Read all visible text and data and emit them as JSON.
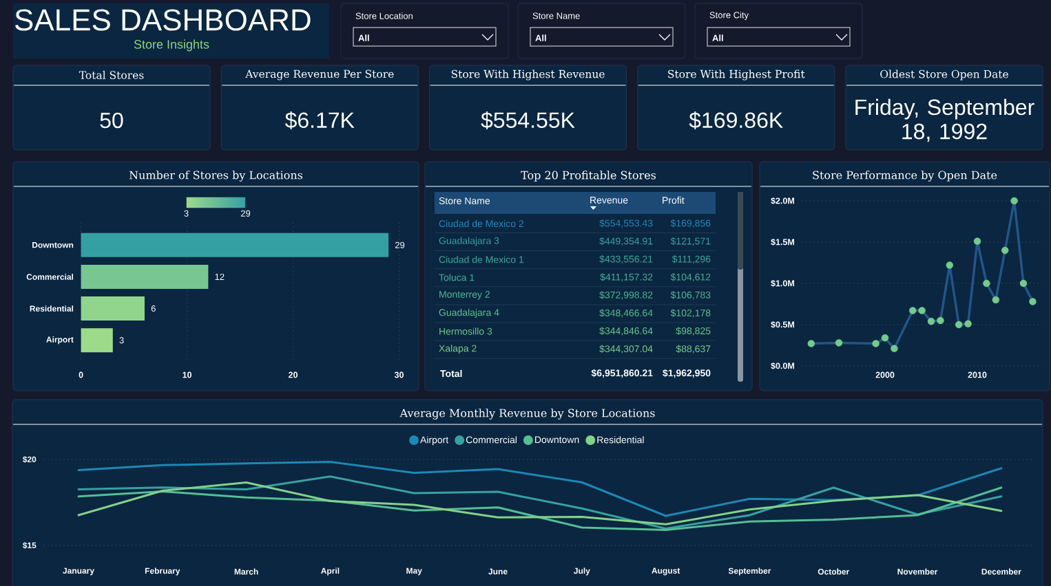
{
  "chart_data": [
    {
      "type": "other",
      "title": "SALES DASHBOARD",
      "subtitle": "Store Insights",
      "annotations": [
        "Store Location",
        "All",
        "Store Name",
        "All",
        "Store City",
        "All"
      ]
    },
    {
      "type": "other",
      "title": "Total Stores",
      "annotations": [
        "50"
      ]
    },
    {
      "type": "other",
      "title": "Average Revenue Per Store",
      "annotations": [
        "$6.17K"
      ]
    },
    {
      "type": "other",
      "title": "Store With Highest Revenue",
      "annotations": [
        "$554.55K"
      ]
    },
    {
      "type": "other",
      "title": "Store With Highest Profit",
      "annotations": [
        "$169.86K"
      ]
    },
    {
      "type": "other",
      "title": "Oldest Store Open Date",
      "annotations": [
        "Friday, September 18, 1992"
      ]
    },
    {
      "type": "bar",
      "orientation": "horizontal",
      "title": "Number of Stores by Locations",
      "categories": [
        "Downtown",
        "Commercial",
        "Residential",
        "Airport"
      ],
      "values": [
        29,
        12,
        6,
        3
      ],
      "colors": [
        "#35a0a4",
        "#78c692",
        "#91d48c",
        "#9dda8a"
      ],
      "xlim": [
        0,
        30
      ],
      "xticks": [
        0,
        10,
        20,
        30
      ],
      "grid": "x",
      "data_labels": true,
      "clim": [
        3,
        29
      ],
      "cticks": [
        3,
        29
      ]
    },
    {
      "type": "other",
      "title": "Top 20 Profitable Stores",
      "categories": [
        "Ciudad de Mexico 2",
        "Guadalajara 3",
        "Ciudad de Mexico 1",
        "Toluca 1",
        "Monterrey 2",
        "Guadalajara 4",
        "Hermosillo 3",
        "Xalapa 2"
      ],
      "series": [
        {
          "name": "Revenue",
          "values": [
            554553.43,
            449354.91,
            433556.21,
            411157.32,
            372998.82,
            348466.64,
            344846.64,
            344307.04
          ],
          "value_labels": [
            "$554,553.43",
            "$449,354.91",
            "$433,556.21",
            "$411,157.32",
            "$372,998.82",
            "$348,466.64",
            "$344,846.64",
            "$344,307.04"
          ]
        },
        {
          "name": "Profit",
          "values": [
            169856,
            121571,
            111296,
            104612,
            106783,
            102178,
            98825,
            88637
          ],
          "value_labels": [
            "$169,856",
            "$121,571",
            "$111,296",
            "$104,612",
            "$106,783",
            "$102,178",
            "$98,825",
            "$88,637"
          ]
        }
      ],
      "colors": [
        "#1f8bbd",
        "#35a39f",
        "#3aa99c",
        "#45b297",
        "#52b993",
        "#5ec08f",
        "#6ac68c",
        "#78cc89"
      ],
      "annotations": [
        "Store Name",
        "Total"
      ],
      "totals": [
        "$6,951,860.21",
        "$1,962,950"
      ]
    },
    {
      "type": "line",
      "title": "Store Performance by Open Date",
      "x": [
        1992,
        1995,
        1999,
        2000,
        2001,
        2003,
        2004,
        2005,
        2006,
        2007,
        2008,
        2009,
        2010,
        2011,
        2012,
        2013,
        2014,
        2015,
        2016
      ],
      "series": [
        {
          "color": "#22558a",
          "colors": [
            "#74ca8c",
            "#74ca8c",
            "#74ca8c",
            "#74ca8c",
            "#74ca8c",
            "#74ca8c",
            "#74ca8c",
            "#74ca8c",
            "#74ca8c",
            "#74ca8c",
            "#74ca8c",
            "#74ca8c",
            "#74ca8c",
            "#74ca8c",
            "#74ca8c",
            "#74ca8c",
            "#74ca8c",
            "#74ca8c",
            "#74ca8c"
          ],
          "values": [
            0.27,
            0.28,
            0.27,
            0.34,
            0.21,
            0.67,
            0.67,
            0.54,
            0.55,
            1.22,
            0.5,
            0.51,
            1.51,
            1.0,
            0.8,
            1.4,
            2.0,
            1.0,
            0.78
          ]
        }
      ],
      "xlim": [
        1991,
        2017
      ],
      "xticks": [
        2000,
        2010
      ],
      "ylim": [
        0,
        2
      ],
      "yticks": [
        {
          "value": 0,
          "label": "$0.0M"
        },
        {
          "value": 0.5,
          "label": "$0.5M"
        },
        {
          "value": 1,
          "label": "$1.0M"
        },
        {
          "value": 1.5,
          "label": "$1.5M"
        },
        {
          "value": 2,
          "label": "$2.0M"
        }
      ],
      "grid": "y",
      "marker": "circle"
    },
    {
      "type": "line",
      "title": "Average Monthly Revenue by Store Locations",
      "categories": [
        "January",
        "February",
        "March",
        "April",
        "May",
        "June",
        "July",
        "August",
        "September",
        "October",
        "November",
        "December"
      ],
      "series": [
        {
          "name": "Airport",
          "color": "#1b88b6",
          "values": [
            19.38,
            19.67,
            19.77,
            19.86,
            19.22,
            19.44,
            18.67,
            16.72,
            17.71,
            17.64,
            17.91,
            19.49
          ]
        },
        {
          "name": "Commercial",
          "color": "#36a2a0",
          "values": [
            18.26,
            18.37,
            18.26,
            19.01,
            18.04,
            18.12,
            17.15,
            15.98,
            16.76,
            18.36,
            16.8,
            17.85
          ]
        },
        {
          "name": "Downtown",
          "color": "#55be95",
          "values": [
            17.85,
            18.14,
            17.79,
            17.6,
            17.03,
            17.21,
            16.04,
            15.9,
            16.39,
            16.5,
            16.76,
            18.36
          ]
        },
        {
          "name": "Residential",
          "color": "#82d28b",
          "values": [
            16.76,
            18.18,
            18.66,
            17.58,
            17.36,
            16.63,
            16.66,
            16.23,
            17.09,
            17.6,
            17.93,
            17.01
          ]
        }
      ],
      "ylim": [
        15,
        20
      ],
      "yticks": [
        {
          "value": 15,
          "label": "$15"
        },
        {
          "value": 20,
          "label": "$20"
        }
      ],
      "grid": "y",
      "legend": "top"
    }
  ]
}
